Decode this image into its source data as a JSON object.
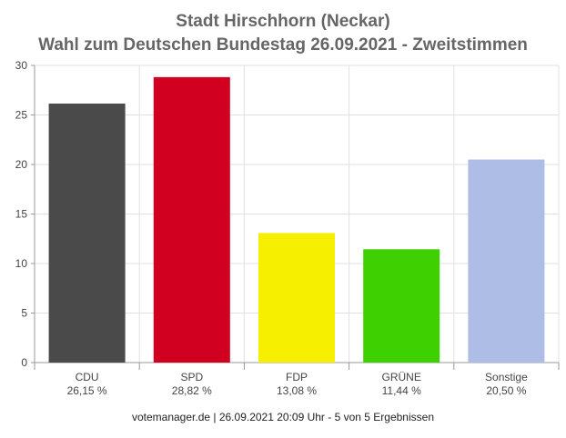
{
  "chart_data": {
    "type": "bar",
    "title": "Stadt Hirschhorn (Neckar)",
    "subtitle": "Wahl zum Deutschen Bundestag 26.09.2021  - Zweitstimmen",
    "categories": [
      "CDU",
      "SPD",
      "FDP",
      "GRÜNE",
      "Sonstige"
    ],
    "value_labels": [
      "26,15 %",
      "28,82 %",
      "13,08 %",
      "11,44 %",
      "20,50 %"
    ],
    "values": [
      26.15,
      28.82,
      13.08,
      11.44,
      20.5
    ],
    "colors": [
      "#4a4a4a",
      "#d10021",
      "#f6f000",
      "#3ed000",
      "#aebde6"
    ],
    "ylim": [
      0,
      30
    ],
    "yticks": [
      0,
      5,
      10,
      15,
      20,
      25,
      30
    ],
    "grid": true,
    "legend": "none"
  },
  "footer": "votemanager.de | 26.09.2021 20:09 Uhr - 5 von 5 Ergebnissen"
}
